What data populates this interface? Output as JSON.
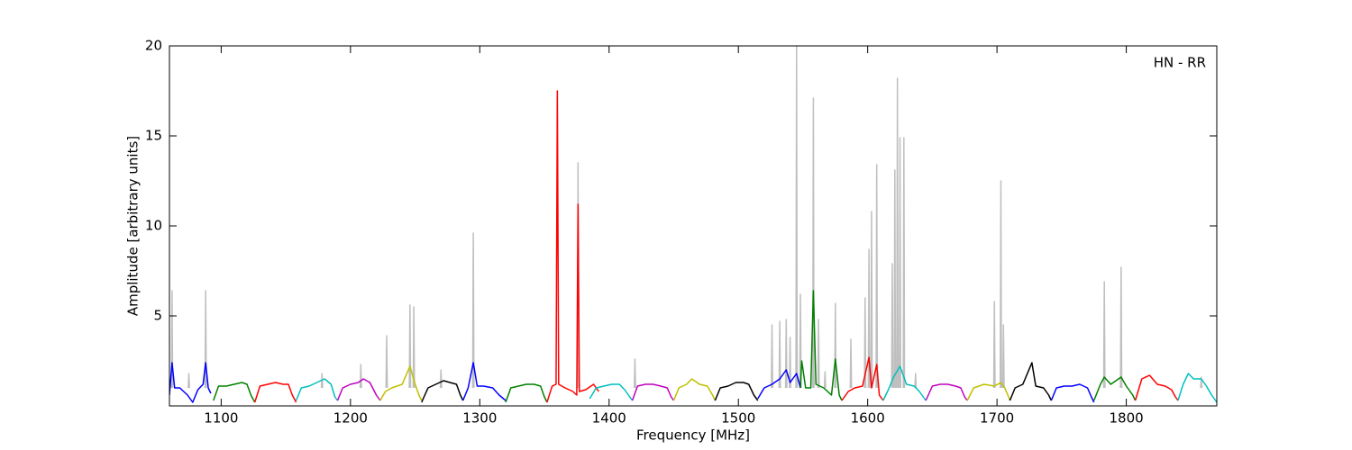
{
  "chart_data": {
    "type": "line",
    "annotation": "HN - RR",
    "xlabel": "Frequency [MHz]",
    "ylabel": "Amplitude [arbitrary units]",
    "xlim": [
      1060,
      1870
    ],
    "ylim": [
      0,
      20
    ],
    "xticks": [
      1100,
      1200,
      1300,
      1400,
      1500,
      1600,
      1700,
      1800
    ],
    "yticks": [
      5,
      10,
      15,
      20
    ],
    "series": [
      {
        "color": "#bfbfbf",
        "x": [
          1061.5,
          1062,
          1062.5,
          1062.6,
          1074.5,
          1075,
          1075.5,
          1075.6,
          1087.5,
          1088,
          1088.5,
          1088.6,
          1177.5,
          1178,
          1178.5,
          1178.6,
          1207.5,
          1208,
          1208.5,
          1208.6,
          1227.5,
          1228,
          1228.5,
          1228.6,
          1245.5,
          1246,
          1246.5,
          1246.6,
          1248.5,
          1249,
          1249.5,
          1249.6,
          1269.5,
          1270,
          1270.5,
          1270.6,
          1294.5,
          1295,
          1295.5,
          1295.6,
          1375.5,
          1376,
          1376.5,
          1376.6,
          1419.5,
          1420,
          1420.5,
          1420.6,
          1525.5,
          1526,
          1526.5,
          1526.6,
          1531.5,
          1532,
          1532.5,
          1532.6,
          1536.5,
          1537,
          1537.5,
          1537.6,
          1539.5,
          1540,
          1540.5,
          1540.6,
          1544.5,
          1545,
          1545.5,
          1545.6,
          1547.5,
          1548,
          1548.5,
          1548.6,
          1557.5,
          1558,
          1558.5,
          1558.6,
          1561.5,
          1562,
          1562.5,
          1562.6,
          1566.5,
          1567,
          1567.5,
          1567.6,
          1574.5,
          1575,
          1575.5,
          1575.6,
          1586.5,
          1587,
          1587.5,
          1587.6,
          1597.5,
          1598,
          1598.5,
          1598.6,
          1600.5,
          1601,
          1601.5,
          1601.6,
          1602.5,
          1603,
          1603.5,
          1603.6,
          1606.5,
          1607,
          1607.5,
          1607.6,
          1618.5,
          1619,
          1619.5,
          1619.6,
          1620.5,
          1621,
          1621.5,
          1621.6,
          1622.5,
          1623,
          1623.5,
          1623.6,
          1624.5,
          1625,
          1625.5,
          1625.6,
          1627.5,
          1628,
          1628.5,
          1628.6,
          1636.5,
          1637,
          1637.5,
          1637.6,
          1697.5,
          1698,
          1698.5,
          1698.6,
          1702.5,
          1703,
          1703.5,
          1703.6,
          1704.5,
          1705,
          1705.5,
          1705.6,
          1782.5,
          1783,
          1783.5,
          1783.6,
          1795.5,
          1796,
          1796.5,
          1796.6,
          1857.5,
          1858,
          1858.5
        ],
        "values": [
          1,
          6.4,
          1,
          null,
          1,
          1.8,
          1,
          null,
          1,
          6.4,
          1,
          null,
          1,
          1.8,
          1,
          null,
          1,
          2.3,
          1,
          null,
          1,
          3.9,
          1,
          null,
          1,
          5.6,
          1,
          null,
          1,
          5.5,
          1,
          null,
          1,
          2.0,
          1,
          null,
          1,
          9.6,
          1,
          null,
          1,
          13.5,
          1,
          null,
          1,
          2.6,
          1,
          null,
          1,
          4.5,
          1,
          null,
          1,
          4.7,
          1,
          null,
          1,
          4.8,
          1,
          null,
          1,
          3.8,
          1,
          null,
          1,
          20,
          1,
          null,
          1,
          6.2,
          1,
          null,
          1,
          17.1,
          1,
          null,
          1,
          4.8,
          1,
          null,
          1,
          1.9,
          1,
          null,
          1,
          5.7,
          1,
          null,
          1,
          3.7,
          1,
          null,
          1,
          6.0,
          1,
          null,
          1,
          8.7,
          1,
          null,
          1,
          10.8,
          1,
          null,
          1,
          13.4,
          1,
          null,
          1,
          7.9,
          1,
          null,
          1,
          13.1,
          1,
          null,
          1,
          18.2,
          1,
          null,
          1,
          14.9,
          1,
          null,
          1,
          14.9,
          1,
          null,
          1,
          1.8,
          1,
          null,
          1,
          5.8,
          1,
          null,
          1,
          12.5,
          1,
          null,
          1,
          4.5,
          1,
          null,
          1,
          6.9,
          1,
          null,
          1,
          7.7,
          1,
          null,
          1,
          1.6,
          1
        ]
      },
      {
        "color": "#0000ff",
        "x": [
          1060,
          1062,
          1064,
          1068,
          1074,
          1078,
          1082,
          1086,
          1088,
          1090,
          1092
        ],
        "values": [
          0.6,
          2.4,
          1.0,
          1.0,
          0.6,
          0.2,
          0.9,
          1.2,
          2.4,
          1.0,
          0.7
        ]
      },
      {
        "color": "#008000",
        "x": [
          1094,
          1098,
          1104,
          1110,
          1116,
          1120,
          1123,
          1126
        ],
        "values": [
          0.3,
          1.1,
          1.1,
          1.2,
          1.3,
          1.2,
          0.6,
          0.2
        ]
      },
      {
        "color": "#ff0000",
        "x": [
          1126,
          1130,
          1136,
          1142,
          1148,
          1152,
          1155,
          1158
        ],
        "values": [
          0.2,
          1.1,
          1.2,
          1.3,
          1.2,
          1.2,
          0.6,
          0.2
        ]
      },
      {
        "color": "#00bfbf",
        "x": [
          1158,
          1162,
          1168,
          1174,
          1180,
          1185,
          1188,
          1190
        ],
        "values": [
          0.3,
          1.0,
          1.1,
          1.3,
          1.5,
          1.2,
          0.5,
          0.3
        ]
      },
      {
        "color": "#bf00bf",
        "x": [
          1190,
          1194,
          1200,
          1206,
          1210,
          1215,
          1220,
          1223
        ],
        "values": [
          0.3,
          1.0,
          1.2,
          1.3,
          1.5,
          1.3,
          0.6,
          0.3
        ]
      },
      {
        "color": "#bfbf00",
        "x": [
          1223,
          1227,
          1232,
          1240,
          1246,
          1250,
          1253,
          1255
        ],
        "values": [
          0.3,
          0.8,
          1.0,
          1.2,
          2.2,
          1.2,
          0.6,
          0.3
        ]
      },
      {
        "color": "#000000",
        "x": [
          1255,
          1260,
          1266,
          1272,
          1277,
          1282,
          1285,
          1287
        ],
        "values": [
          0.2,
          1.0,
          1.2,
          1.4,
          1.3,
          1.2,
          0.6,
          0.3
        ]
      },
      {
        "color": "#0000ff",
        "x": [
          1287,
          1291,
          1295,
          1298,
          1303,
          1310,
          1315,
          1320
        ],
        "values": [
          0.3,
          1.0,
          2.4,
          1.1,
          1.1,
          1.0,
          0.6,
          0.3
        ]
      },
      {
        "color": "#008000",
        "x": [
          1320,
          1324,
          1330,
          1336,
          1342,
          1347,
          1350,
          1352
        ],
        "values": [
          0.2,
          1.0,
          1.1,
          1.2,
          1.2,
          1.1,
          0.5,
          0.2
        ]
      },
      {
        "color": "#ff0000",
        "x": [
          1352,
          1356,
          1359,
          1360,
          1361,
          1366,
          1372,
          1375,
          1376,
          1377,
          1382,
          1388,
          1392
        ],
        "values": [
          0.2,
          1.1,
          1.2,
          17.5,
          1.2,
          1.0,
          0.8,
          0.6,
          11.2,
          0.8,
          0.9,
          1.2,
          0.8
        ]
      },
      {
        "color": "#00bfbf",
        "x": [
          1385,
          1390,
          1396,
          1402,
          1408,
          1412,
          1416,
          1418
        ],
        "values": [
          0.4,
          1.0,
          1.1,
          1.2,
          1.2,
          0.9,
          0.5,
          0.3
        ]
      },
      {
        "color": "#bf00bf",
        "x": [
          1418,
          1422,
          1428,
          1434,
          1440,
          1445,
          1448,
          1450
        ],
        "values": [
          0.3,
          1.1,
          1.2,
          1.2,
          1.1,
          1.0,
          0.5,
          0.3
        ]
      },
      {
        "color": "#bfbf00",
        "x": [
          1450,
          1454,
          1460,
          1464,
          1470,
          1476,
          1480,
          1482
        ],
        "values": [
          0.3,
          1.0,
          1.2,
          1.5,
          1.2,
          1.1,
          0.6,
          0.3
        ]
      },
      {
        "color": "#000000",
        "x": [
          1482,
          1486,
          1492,
          1498,
          1504,
          1508,
          1512,
          1515
        ],
        "values": [
          0.3,
          1.0,
          1.1,
          1.3,
          1.3,
          1.2,
          0.6,
          0.3
        ]
      },
      {
        "color": "#0000ff",
        "x": [
          1515,
          1520,
          1526,
          1532,
          1537,
          1540,
          1545,
          1548
        ],
        "values": [
          0.4,
          1.0,
          1.2,
          1.5,
          2.0,
          1.3,
          1.8,
          1.0
        ]
      },
      {
        "color": "#008000",
        "x": [
          1548,
          1549,
          1552,
          1556,
          1558,
          1560,
          1566,
          1572,
          1575,
          1578,
          1580
        ],
        "values": [
          1.0,
          2.5,
          1.0,
          1.0,
          6.4,
          1.2,
          1.0,
          0.6,
          2.6,
          0.6,
          0.3
        ]
      },
      {
        "color": "#ff0000",
        "x": [
          1580,
          1585,
          1590,
          1596,
          1601,
          1603,
          1607,
          1609,
          1612
        ],
        "values": [
          0.3,
          0.8,
          1.0,
          1.1,
          2.7,
          1.0,
          2.3,
          0.6,
          0.3
        ]
      },
      {
        "color": "#00bfbf",
        "x": [
          1612,
          1616,
          1620,
          1625,
          1630,
          1636,
          1640,
          1645
        ],
        "values": [
          0.3,
          0.9,
          1.6,
          2.2,
          1.2,
          1.1,
          0.8,
          0.3
        ]
      },
      {
        "color": "#bf00bf",
        "x": [
          1645,
          1650,
          1656,
          1662,
          1668,
          1672,
          1675,
          1677
        ],
        "values": [
          0.3,
          1.1,
          1.2,
          1.2,
          1.1,
          1.0,
          0.5,
          0.3
        ]
      },
      {
        "color": "#bfbf00",
        "x": [
          1677,
          1682,
          1690,
          1698,
          1703,
          1706,
          1709,
          1710
        ],
        "values": [
          0.3,
          1.0,
          1.2,
          1.1,
          1.3,
          1.0,
          0.5,
          0.3
        ]
      },
      {
        "color": "#000000",
        "x": [
          1710,
          1714,
          1720,
          1727,
          1730,
          1736,
          1740,
          1742
        ],
        "values": [
          0.3,
          1.0,
          1.2,
          2.4,
          1.1,
          1.0,
          0.6,
          0.3
        ]
      },
      {
        "color": "#0000ff",
        "x": [
          1742,
          1746,
          1752,
          1758,
          1764,
          1770,
          1773,
          1775
        ],
        "values": [
          0.3,
          1.0,
          1.1,
          1.1,
          1.2,
          1.0,
          0.5,
          0.2
        ]
      },
      {
        "color": "#008000",
        "x": [
          1775,
          1780,
          1783,
          1788,
          1796,
          1800,
          1805,
          1807
        ],
        "values": [
          0.3,
          1.2,
          1.6,
          1.2,
          1.6,
          1.1,
          0.6,
          0.3
        ]
      },
      {
        "color": "#ff0000",
        "x": [
          1807,
          1812,
          1818,
          1824,
          1830,
          1835,
          1838,
          1840
        ],
        "values": [
          0.3,
          1.5,
          1.7,
          1.2,
          1.1,
          0.9,
          0.5,
          0.3
        ]
      },
      {
        "color": "#00bfbf",
        "x": [
          1840,
          1844,
          1848,
          1852,
          1858,
          1862,
          1866,
          1870
        ],
        "values": [
          0.3,
          1.2,
          1.8,
          1.5,
          1.5,
          1.1,
          0.6,
          0.2
        ]
      }
    ]
  }
}
